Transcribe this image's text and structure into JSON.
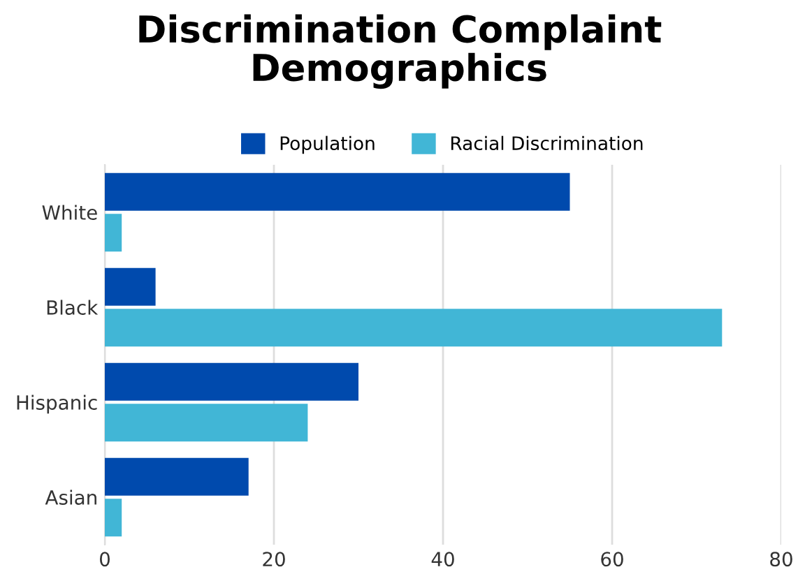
{
  "chart_data": {
    "type": "bar",
    "title": "Discrimination Complaint\nDemographics",
    "orientation": "horizontal",
    "categories": [
      "White",
      "Black",
      "Hispanic",
      "Asian"
    ],
    "series": [
      {
        "name": "Population",
        "color": "#004aad",
        "values": [
          55,
          6,
          30,
          17
        ]
      },
      {
        "name": "Racial Discrimination",
        "color": "#41b6d6",
        "values": [
          2,
          73,
          24,
          2
        ]
      }
    ],
    "xlim": [
      0,
      80
    ],
    "xticks": [
      0,
      20,
      40,
      60,
      80
    ],
    "grid": "x",
    "legend": "top"
  }
}
